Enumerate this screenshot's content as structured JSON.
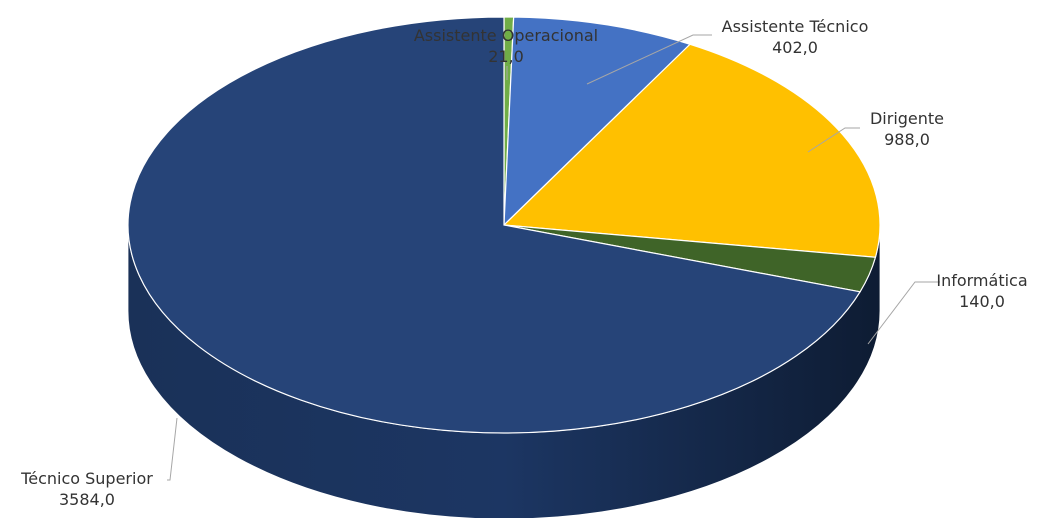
{
  "chart_data": {
    "type": "pie",
    "style": "3d",
    "title": "",
    "slices": [
      {
        "label": "Assistente Operacional",
        "value": 21,
        "value_label": "21,0",
        "color": "#70ad47"
      },
      {
        "label": "Assistente Técnico",
        "value": 402,
        "value_label": "402,0",
        "color": "#4472c4"
      },
      {
        "label": "Dirigente",
        "value": 988,
        "value_label": "988,0",
        "color": "#ffc000"
      },
      {
        "label": "Informática",
        "value": 140,
        "value_label": "140,0",
        "color": "#3f6428"
      },
      {
        "label": "Técnico Superior",
        "value": 3584,
        "value_label": "3584,0",
        "color": "#264478"
      }
    ],
    "legend": "none",
    "data_labels": "outside with leader lines"
  }
}
